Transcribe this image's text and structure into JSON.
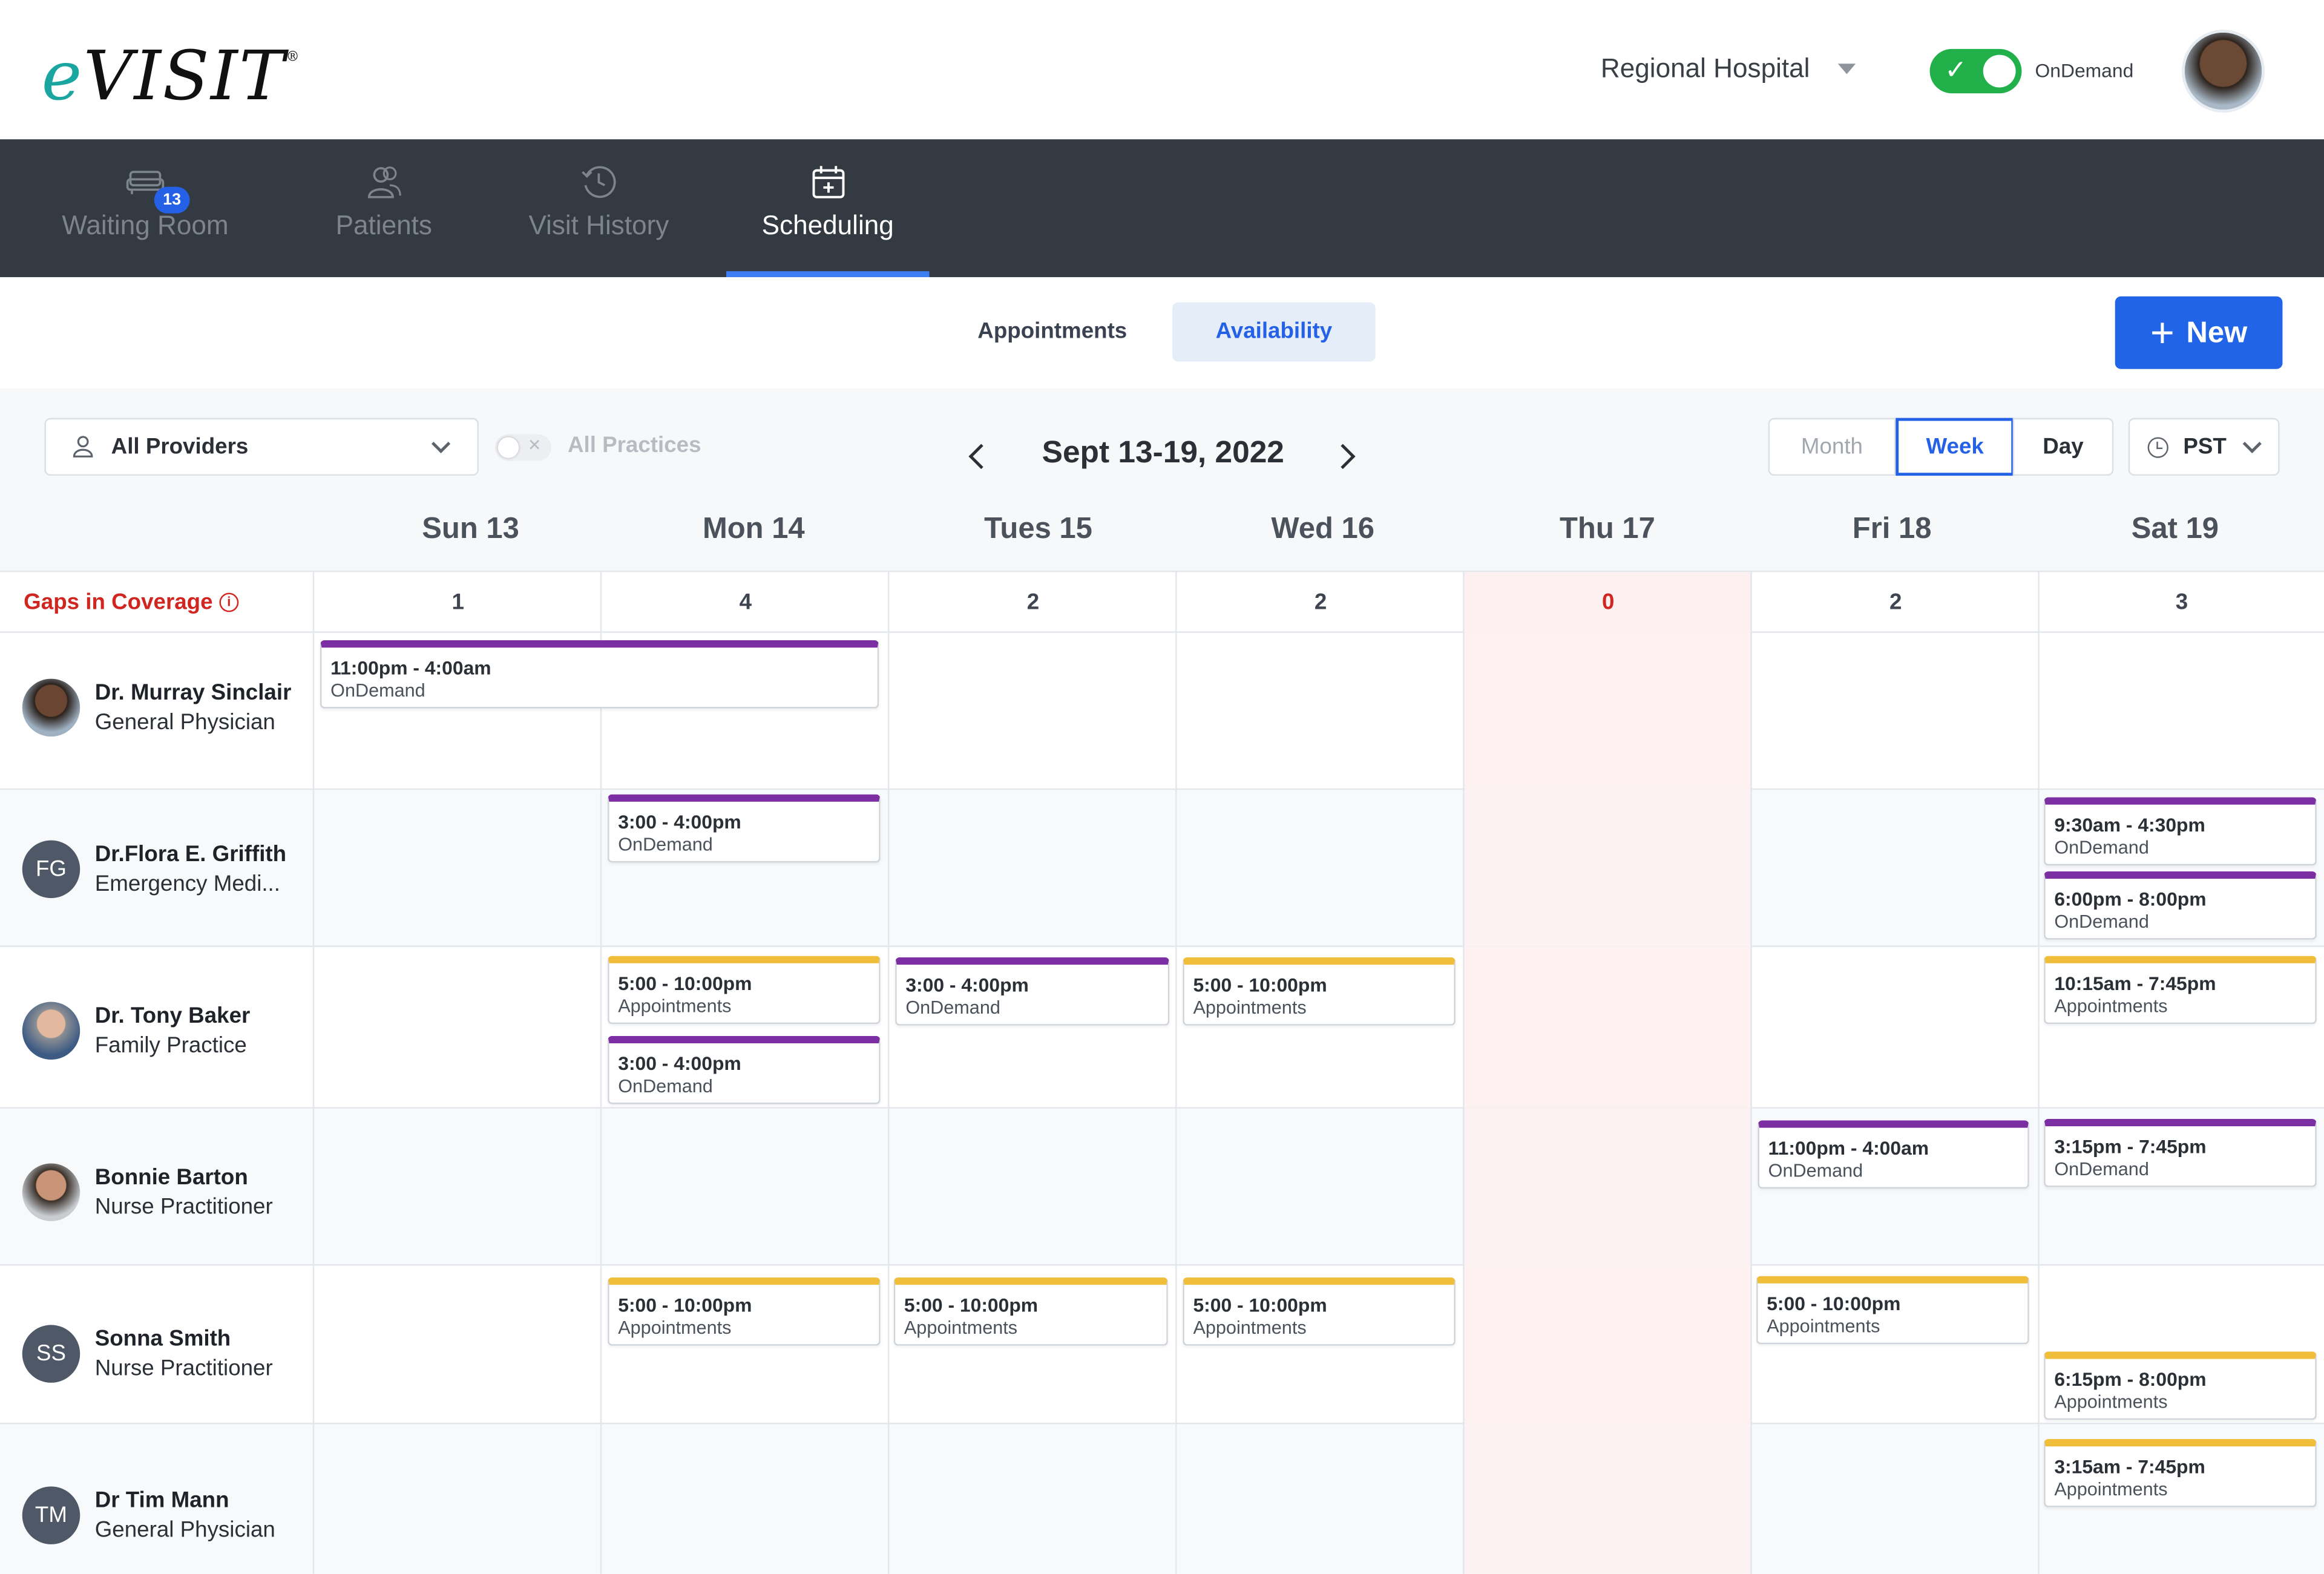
{
  "header": {
    "logo_text": "eVisit",
    "organization": "Regional Hospital",
    "ondemand_label": "OnDemand",
    "ondemand_on": true
  },
  "nav": {
    "items": [
      {
        "label": "Waiting Room",
        "icon": "couch-icon",
        "badge": "13"
      },
      {
        "label": "Patients",
        "icon": "people-icon"
      },
      {
        "label": "Visit History",
        "icon": "history-icon"
      },
      {
        "label": "Scheduling",
        "icon": "calendar-plus-icon",
        "active": true
      }
    ]
  },
  "subtabs": {
    "appointments": "Appointments",
    "availability": "Availability",
    "active": "Availability",
    "new_button": "New"
  },
  "filters": {
    "providers": "All Providers",
    "practices": "All Practices",
    "date_range": "Sept 13-19, 2022",
    "views": {
      "month": "Month",
      "week": "Week",
      "day": "Day"
    },
    "active_view": "Week",
    "timezone": "PST"
  },
  "days": [
    "Sun 13",
    "Mon 14",
    "Tues 15",
    "Wed 16",
    "Thu 17",
    "Fri 18",
    "Sat 19"
  ],
  "gaps": {
    "label": "Gaps in Coverage",
    "counts": [
      "1",
      "4",
      "2",
      "2",
      "0",
      "2",
      "3"
    ]
  },
  "providers": [
    {
      "name": "Dr. Murray Sinclair",
      "role": "General Physician",
      "avatar": "photo",
      "events": [
        {
          "time": "11:00pm - 4:00am",
          "kind": "OnDemand"
        }
      ]
    },
    {
      "name": "Dr.Flora E. Griffith",
      "role": "Emergency Medi...",
      "avatar": "FG",
      "events": [
        {
          "time": "3:00 - 4:00pm",
          "kind": "OnDemand"
        },
        {
          "time": "9:30am - 4:30pm",
          "kind": "OnDemand"
        },
        {
          "time": "6:00pm - 8:00pm",
          "kind": "OnDemand"
        }
      ]
    },
    {
      "name": "Dr. Tony Baker",
      "role": "Family Practice",
      "avatar": "photo",
      "events": [
        {
          "time": "5:00 - 10:00pm",
          "kind": "Appointments"
        },
        {
          "time": "3:00 - 4:00pm",
          "kind": "OnDemand"
        },
        {
          "time": "3:00 - 4:00pm",
          "kind": "OnDemand"
        },
        {
          "time": "5:00 - 10:00pm",
          "kind": "Appointments"
        },
        {
          "time": "10:15am - 7:45pm",
          "kind": "Appointments"
        }
      ]
    },
    {
      "name": "Bonnie Barton",
      "role": "Nurse Practitioner",
      "avatar": "photo",
      "events": [
        {
          "time": "11:00pm - 4:00am",
          "kind": "OnDemand"
        },
        {
          "time": "3:15pm - 7:45pm",
          "kind": "OnDemand"
        }
      ]
    },
    {
      "name": "Sonna Smith",
      "role": "Nurse Practitioner",
      "avatar": "SS",
      "events": [
        {
          "time": "5:00 - 10:00pm",
          "kind": "Appointments"
        },
        {
          "time": "5:00 - 10:00pm",
          "kind": "Appointments"
        },
        {
          "time": "5:00 - 10:00pm",
          "kind": "Appointments"
        },
        {
          "time": "5:00 - 10:00pm",
          "kind": "Appointments"
        },
        {
          "time": "6:15pm - 8:00pm",
          "kind": "Appointments"
        }
      ]
    },
    {
      "name": "Dr Tim Mann",
      "role": "General Physician",
      "avatar": "TM",
      "events": [
        {
          "time": "3:15am - 7:45pm",
          "kind": "Appointments"
        }
      ]
    }
  ],
  "colors": {
    "ondemand": "#7b2fa3",
    "appointments": "#f0be3b",
    "primary": "#2164e8",
    "gap_alert": "#d0261f",
    "nav_bg": "#333a42"
  }
}
